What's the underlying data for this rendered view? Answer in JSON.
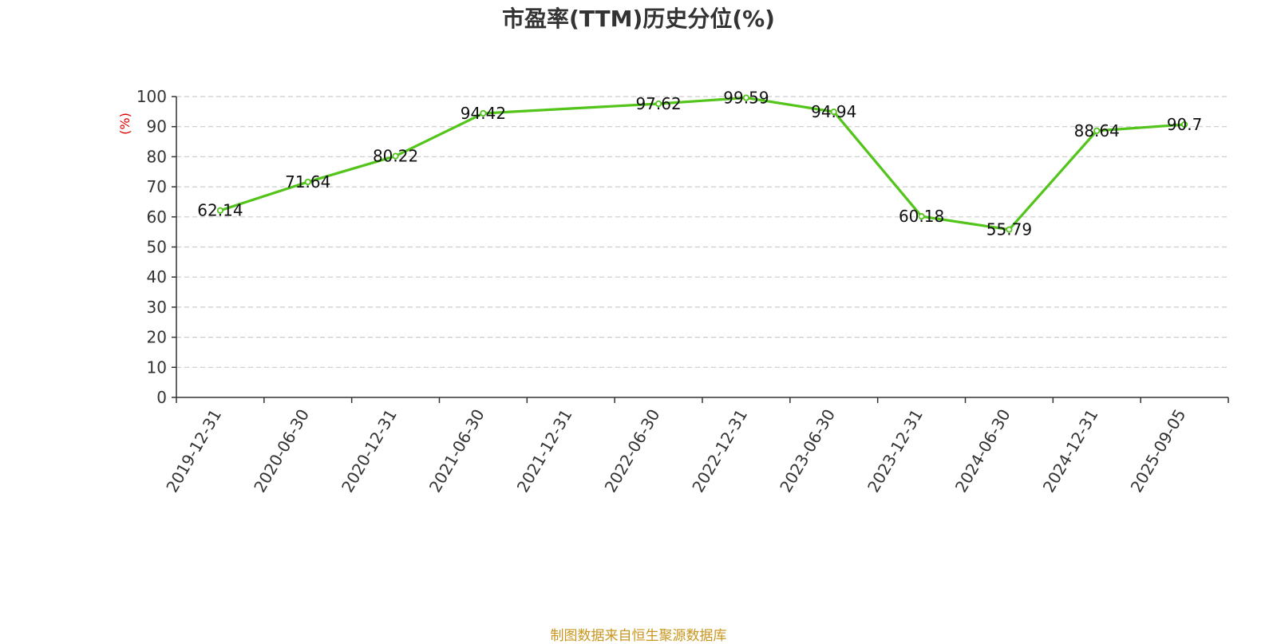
{
  "footer": {
    "source": "制图数据来自恒生聚源数据库"
  },
  "chart_data": {
    "type": "line",
    "title": "市盈率(TTM)历史分位(%)",
    "ylabel": "(%)",
    "xlabel": "",
    "ylim": [
      0,
      100
    ],
    "yticks": [
      0,
      10,
      20,
      30,
      40,
      50,
      60,
      70,
      80,
      90,
      100
    ],
    "grid": true,
    "colors": {
      "line": "#52c41a",
      "axis": "#333333",
      "grid": "#cccccc",
      "ylabel": "#e00000",
      "title": "#333333"
    },
    "categories": [
      "2019-12-31",
      "2020-06-30",
      "2020-12-31",
      "2021-06-30",
      "2021-12-31",
      "2022-06-30",
      "2022-12-31",
      "2023-06-30",
      "2023-12-31",
      "2024-06-30",
      "2024-12-31",
      "2025-09-05"
    ],
    "values": [
      62.14,
      71.64,
      80.22,
      94.42,
      null,
      97.62,
      99.59,
      94.94,
      60.18,
      55.79,
      88.64,
      90.7
    ],
    "labels": [
      "62.14",
      "71.64",
      "80.22",
      "94.42",
      "",
      "97.62",
      "99.59",
      "94.94",
      "60.18",
      "55.79",
      "88.64",
      "90.7"
    ]
  }
}
